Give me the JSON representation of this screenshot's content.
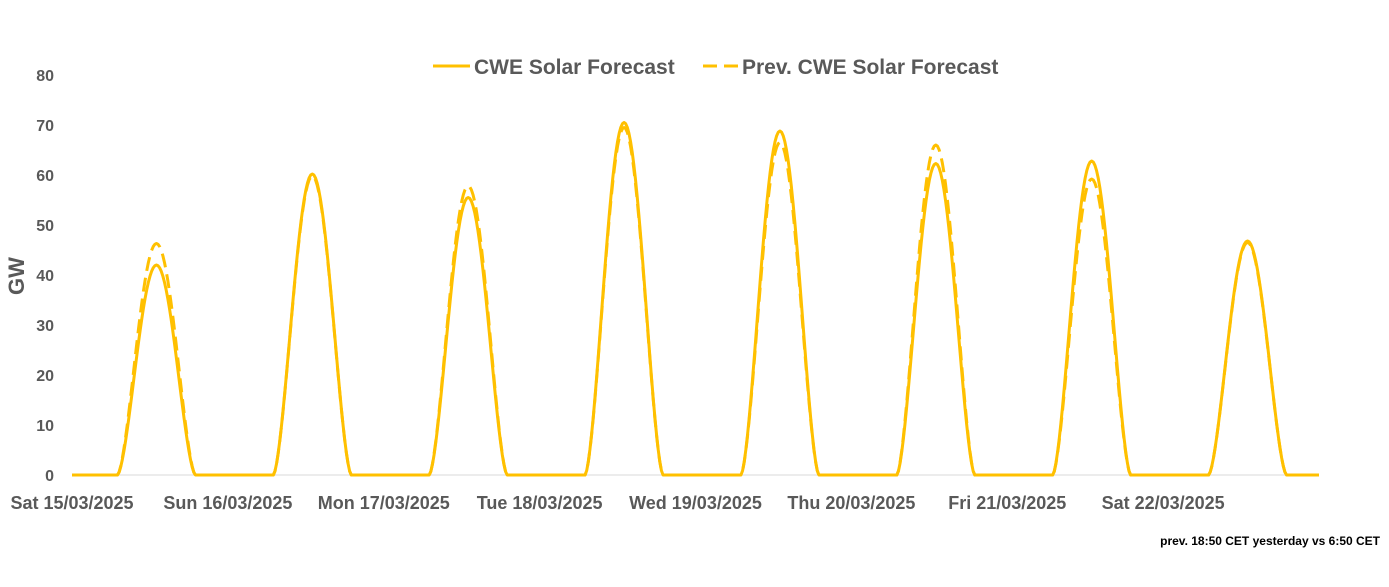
{
  "chart_data": {
    "type": "line",
    "title": "",
    "xlabel": "",
    "ylabel": "GW",
    "ylim": [
      0,
      80
    ],
    "yticks": [
      0,
      10,
      20,
      30,
      40,
      50,
      60,
      70,
      80
    ],
    "grid": false,
    "legend_position": "top-center",
    "x_unit": "days since Sat 15/03/2025 00:00",
    "categories": [
      "Sat 15/03/2025",
      "Sun 16/03/2025",
      "Mon 17/03/2025",
      "Tue 18/03/2025",
      "Wed 19/03/2025",
      "Thu 20/03/2025",
      "Fri 21/03/2025",
      "Sat 22/03/2025"
    ],
    "series": [
      {
        "name": "CWE Solar Forecast",
        "style": "solid",
        "color": "#FFC000",
        "daily_shape": {
          "sunrise_hour": 7.0,
          "sunset_hour": 19.0
        },
        "daily_peaks_gw": [
          42.0,
          60.2,
          55.5,
          70.5,
          68.8,
          62.3,
          62.8,
          46.8
        ]
      },
      {
        "name": "Prev. CWE Solar Forecast",
        "style": "dashed",
        "color": "#FFC000",
        "daily_shape": {
          "sunrise_hour": 7.0,
          "sunset_hour": 19.0
        },
        "daily_peaks_gw": [
          46.3,
          59.8,
          57.8,
          69.5,
          66.5,
          66.0,
          59.2,
          46.5
        ]
      }
    ]
  },
  "footnote": "prev. 18:50 CET yesterday vs  6:50 CET"
}
